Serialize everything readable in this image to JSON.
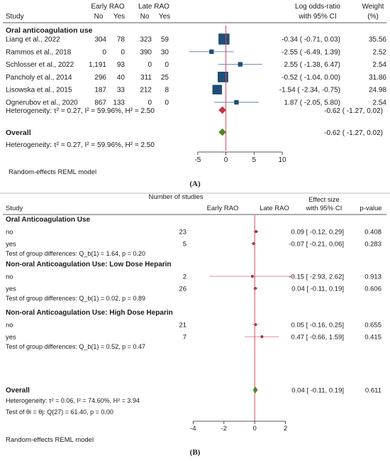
{
  "colors": {
    "square": "#1f4e79",
    "pooled_a": "#c0334a",
    "overall_a": "#4a8a2a",
    "null_line": "#d94a5a",
    "ci_line": "#5a7fb0",
    "marker_b": "#a0303a",
    "ci_line_b": "#e0607a",
    "overall_b": "#4a8a2a"
  },
  "chart_data": [
    {
      "type": "forest",
      "panel_label": "(A)",
      "headers": {
        "study": "Study",
        "early": "Early RAO",
        "late": "Late RAO",
        "no": "No",
        "yes": "Yes",
        "effect": "Log odds-ratio",
        "effect2": "with 95% CI",
        "weight": "Weight",
        "weight2": "(%)"
      },
      "group_label": "Oral anticoagulation use",
      "studies": [
        {
          "name": "Liang et al., 2022",
          "early_no": "304",
          "early_yes": "78",
          "late_no": "323",
          "late_yes": "59",
          "est": -0.34,
          "lo": -0.71,
          "hi": 0.03,
          "ci_text": "-0.34 ( -0.71,  0.03)",
          "weight": "35.56",
          "w": 35.56
        },
        {
          "name": "Rammos et al., 2018",
          "early_no": "0",
          "early_yes": "0",
          "late_no": "390",
          "late_yes": "30",
          "est": -2.55,
          "lo": -6.49,
          "hi": 1.39,
          "ci_text": "-2.55 ( -6.49,  1.39)",
          "weight": "2.52",
          "w": 2.52
        },
        {
          "name": "Schlosser et al., 2022",
          "early_no": "1,191",
          "early_yes": "93",
          "late_no": "0",
          "late_yes": "0",
          "est": 2.55,
          "lo": -1.38,
          "hi": 6.47,
          "ci_text": "2.55 ( -1.38,  6.47)",
          "weight": "2.54",
          "w": 2.54
        },
        {
          "name": "Pancholy et al., 2014",
          "early_no": "296",
          "early_yes": "40",
          "late_no": "311",
          "late_yes": "25",
          "est": -0.52,
          "lo": -1.04,
          "hi": 0.0,
          "ci_text": "-0.52 ( -1.04,  0.00)",
          "weight": "31.86",
          "w": 31.86
        },
        {
          "name": "Lisowska et al., 2015",
          "early_no": "187",
          "early_yes": "33",
          "late_no": "212",
          "late_yes": "8",
          "est": -1.54,
          "lo": -2.34,
          "hi": -0.75,
          "ci_text": "-1.54 ( -2.34, -0.75)",
          "weight": "24.98",
          "w": 24.98
        },
        {
          "name": "Ognerubov et al., 2020",
          "early_no": "867",
          "early_yes": "133",
          "late_no": "0",
          "late_yes": "0",
          "est": 1.87,
          "lo": -2.05,
          "hi": 5.8,
          "ci_text": "1.87 ( -2.05,  5.80)",
          "weight": "2.54",
          "w": 2.54
        }
      ],
      "group_pooled": {
        "label": "Heterogeneity: τ² = 0.27, I² = 59.96%, H² = 2.50",
        "est": -0.62,
        "lo": -1.27,
        "hi": 0.02,
        "ci_text": "-0.62 ( -1.27,  0.02)"
      },
      "overall": {
        "label": "Overall",
        "het": "Heterogeneity: τ² = 0.27, I² = 59.96%, H² = 2.50",
        "est": -0.62,
        "lo": -1.27,
        "hi": 0.02,
        "ci_text": "-0.62 ( -1.27,  0.02)"
      },
      "xticks": [
        -5,
        0,
        5,
        10
      ],
      "xlim": [
        -8,
        10
      ],
      "model_label": "Random-effects REML model"
    },
    {
      "type": "forest",
      "panel_label": "(B)",
      "headers": {
        "count": "Number of studies",
        "study": "Study",
        "early": "Early RAO",
        "late": "Late RAO",
        "effect": "Effect size",
        "effect2": "with 95% CI",
        "pval": "p-value"
      },
      "groups": [
        {
          "label": "Oral Anticoagulation Use",
          "rows": [
            {
              "name": "no",
              "n": "23",
              "est": 0.09,
              "lo": -0.12,
              "hi": 0.29,
              "ci_text": "0.09 [ -0.12,  0.29]",
              "p": "0.408"
            },
            {
              "name": "yes",
              "n": "5",
              "est": -0.07,
              "lo": -0.21,
              "hi": 0.06,
              "ci_text": "-0.07 [ -0.21,  0.06]",
              "p": "0.283"
            }
          ],
          "test": "Test of group differences: Q_b(1) = 1.64, p = 0.20"
        },
        {
          "label": "Non-oral Anticoagulation Use: Low Dose Heparin",
          "rows": [
            {
              "name": "no",
              "n": "2",
              "est": -0.15,
              "lo": -2.93,
              "hi": 2.62,
              "ci_text": "-0.15 [ -2.93,  2.62]",
              "p": "0.913"
            },
            {
              "name": "yes",
              "n": "26",
              "est": 0.04,
              "lo": -0.11,
              "hi": 0.19,
              "ci_text": "0.04 [ -0.11,  0.19]",
              "p": "0.606"
            }
          ],
          "test": "Test of group differences: Q_b(1) = 0.02, p = 0.89"
        },
        {
          "label": "Non-oral Anticoagulation Use: High Dose Heparin",
          "rows": [
            {
              "name": "no",
              "n": "21",
              "est": 0.05,
              "lo": -0.16,
              "hi": 0.25,
              "ci_text": "0.05 [ -0.16,  0.25]",
              "p": "0.655"
            },
            {
              "name": "yes",
              "n": "7",
              "est": 0.47,
              "lo": -0.66,
              "hi": 1.59,
              "ci_text": "0.47 [ -0.66,  1.59]",
              "p": "0.415"
            }
          ],
          "test": "Test of group differences: Q_b(1) = 0.52, p = 0.47"
        }
      ],
      "overall": {
        "label": "Overall",
        "het": "Heterogeneity: τ² = 0.06, I² = 74.60%, H² = 3.94",
        "test": "Test of θi = θj: Q(27) = 61.40, p = 0.00",
        "est": 0.04,
        "lo": -0.11,
        "hi": 0.19,
        "ci_text": "0.04 [ -0.11,  0.19]",
        "p": "0.611"
      },
      "xticks": [
        -4,
        -2,
        0,
        2
      ],
      "xlim": [
        -4.2,
        2.8
      ],
      "model_label": "Random-effects REML model"
    }
  ]
}
